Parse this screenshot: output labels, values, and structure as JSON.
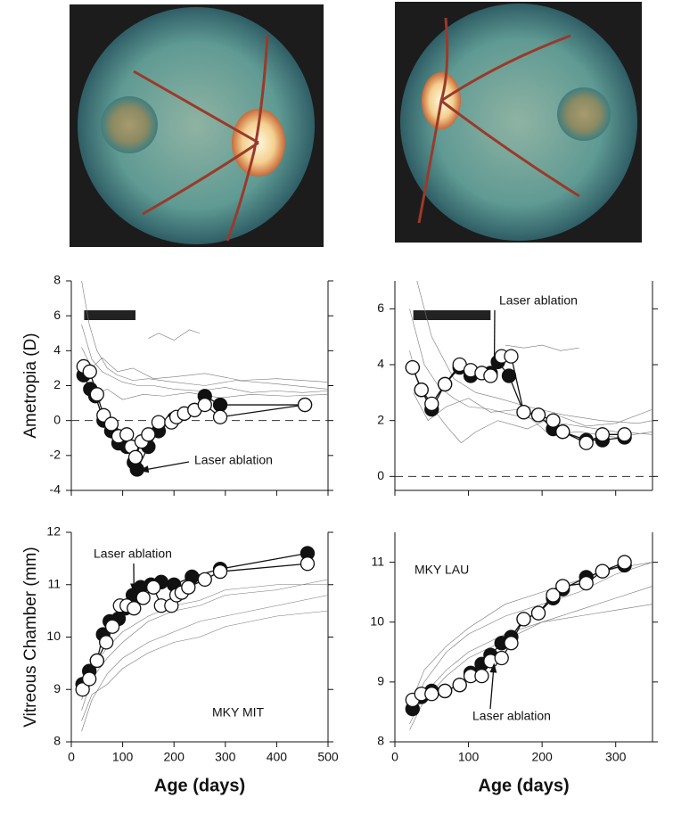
{
  "chart_data": [
    {
      "type": "line",
      "y_label": "Ametropia (D)",
      "xlim": [
        0,
        500
      ],
      "ylim": [
        -4,
        8
      ],
      "xticks": [
        0,
        100,
        200,
        300,
        400,
        500
      ],
      "yticks": [
        -4,
        -2,
        0,
        2,
        4,
        6,
        8
      ],
      "xtick_labels": false,
      "hline": 0,
      "period": [
        25,
        125
      ],
      "annotations": [
        {
          "text": "Laser ablation",
          "x": 128,
          "y": -2.9
        }
      ],
      "series": [
        {
          "color": "#777777",
          "marker": "none",
          "x": [
            20,
            40,
            60,
            80,
            100,
            130,
            160,
            200,
            250,
            300,
            350,
            400,
            450,
            500
          ],
          "values": [
            5.5,
            3.5,
            2.8,
            2.5,
            2.2,
            2.0,
            2.0,
            1.8,
            1.7,
            1.9,
            1.6,
            1.7,
            1.6,
            1.7
          ]
        },
        {
          "color": "#777777",
          "marker": "none",
          "x": [
            20,
            35,
            50,
            70,
            90,
            120,
            150,
            200,
            260,
            320,
            400,
            500
          ],
          "values": [
            8,
            5.5,
            4,
            3,
            2.6,
            2.3,
            2.4,
            2.2,
            2.0,
            2.3,
            2.1,
            1.8
          ]
        },
        {
          "color": "#777777",
          "marker": "none",
          "x": [
            25,
            45,
            70,
            100,
            140,
            180,
            230,
            290,
            350,
            420,
            500
          ],
          "values": [
            2,
            1.5,
            1.8,
            1.2,
            1.5,
            1.4,
            1.6,
            1.3,
            1.5,
            1.4,
            1.5
          ]
        },
        {
          "color": "#777777",
          "marker": "none",
          "x": [
            150,
            170,
            200,
            230,
            250
          ],
          "values": [
            4.7,
            5.0,
            4.6,
            5.2,
            5.0
          ]
        },
        {
          "color": "#777777",
          "marker": "none",
          "x": [
            20,
            40,
            60,
            90,
            120,
            160,
            200,
            260,
            330,
            400,
            500
          ],
          "values": [
            4.2,
            3.0,
            3.6,
            2.8,
            3.0,
            2.4,
            2.5,
            2.7,
            2.3,
            2.4,
            2.2
          ]
        },
        {
          "color": "#111111",
          "marker": "filled",
          "x": [
            24,
            37,
            47,
            63,
            78,
            92,
            108,
            122,
            128,
            150,
            170,
            200,
            240,
            260,
            290,
            455
          ],
          "values": [
            2.6,
            1.8,
            1.4,
            0,
            -0.6,
            -1.3,
            -1.5,
            -2.4,
            -2.8,
            -1.5,
            -0.6,
            0.1,
            0.6,
            1.4,
            0.9,
            0.9
          ]
        },
        {
          "color": "#111111",
          "marker": "open",
          "x": [
            24,
            36,
            50,
            63,
            78,
            92,
            108,
            117,
            125,
            137,
            150,
            170,
            195,
            205,
            220,
            240,
            260,
            290,
            455
          ],
          "values": [
            3.1,
            2.8,
            1.5,
            0.3,
            -0.2,
            -0.9,
            -0.8,
            -1.5,
            -2.1,
            -1.2,
            -0.8,
            -0.1,
            -0.1,
            0.2,
            0.4,
            0.6,
            0.9,
            0.2,
            0.9
          ]
        }
      ]
    },
    {
      "type": "line",
      "xlim": [
        0,
        350
      ],
      "ylim": [
        -0.5,
        7
      ],
      "xticks": [
        0,
        100,
        200,
        300
      ],
      "yticks": [
        0,
        2,
        4,
        6
      ],
      "xtick_labels": false,
      "hline": 0,
      "period": [
        25,
        130
      ],
      "annotations": [
        {
          "text": "Laser ablation",
          "x": 135,
          "y": 3.7
        }
      ],
      "series": [
        {
          "color": "#777777",
          "marker": "none",
          "x": [
            20,
            40,
            60,
            80,
            100,
            130,
            160,
            200,
            250,
            300,
            350
          ],
          "values": [
            6,
            4,
            3.2,
            2.8,
            2.5,
            2.4,
            2.2,
            2.0,
            1.8,
            1.6,
            1.5
          ]
        },
        {
          "color": "#777777",
          "marker": "none",
          "x": [
            20,
            35,
            50,
            70,
            90,
            110,
            140,
            180,
            220,
            260,
            300,
            350
          ],
          "values": [
            4.5,
            3,
            2.5,
            1.8,
            1.2,
            1.6,
            2,
            1.7,
            2.2,
            1.8,
            1.9,
            2.4
          ]
        },
        {
          "color": "#777777",
          "marker": "none",
          "x": [
            25,
            45,
            70,
            100,
            130,
            170,
            210,
            250,
            300,
            350
          ],
          "values": [
            3,
            2,
            2.5,
            2.8,
            2.3,
            2.4,
            1.5,
            1.6,
            1.4,
            1.6
          ]
        },
        {
          "color": "#777777",
          "marker": "none",
          "x": [
            150,
            175,
            200,
            225,
            250
          ],
          "values": [
            4.7,
            4.6,
            4.7,
            4.5,
            4.6
          ]
        },
        {
          "color": "#777777",
          "marker": "none",
          "x": [
            30,
            50,
            80,
            110,
            140,
            180,
            230,
            280,
            330,
            350
          ],
          "values": [
            7,
            5,
            3.5,
            3,
            2.8,
            2.5,
            2.2,
            2.0,
            1.9,
            2.0
          ]
        },
        {
          "color": "#111111",
          "marker": "filled",
          "x": [
            24,
            36,
            50,
            68,
            88,
            103,
            118,
            130,
            140,
            155,
            175,
            195,
            215,
            228,
            260,
            282,
            312
          ],
          "values": [
            3.9,
            3.1,
            2.4,
            3.3,
            3.9,
            3.6,
            3.7,
            3.7,
            4.1,
            3.6,
            2.3,
            2.2,
            1.7,
            1.6,
            1.3,
            1.3,
            1.4
          ]
        },
        {
          "color": "#111111",
          "marker": "open",
          "x": [
            24,
            36,
            50,
            68,
            88,
            103,
            118,
            130,
            145,
            158,
            175,
            195,
            215,
            228,
            260,
            282,
            312
          ],
          "values": [
            3.9,
            3.1,
            2.6,
            3.3,
            4.0,
            3.8,
            3.7,
            3.6,
            4.3,
            4.3,
            2.3,
            2.2,
            2.0,
            1.6,
            1.2,
            1.5,
            1.5
          ]
        }
      ]
    },
    {
      "type": "line",
      "y_label": "Vitreous Chamber (mm)",
      "x_label": "Age (days)",
      "xlim": [
        0,
        500
      ],
      "ylim": [
        8,
        12
      ],
      "xticks": [
        0,
        100,
        200,
        300,
        400,
        500
      ],
      "yticks": [
        8,
        9,
        10,
        11,
        12
      ],
      "xtick_labels": true,
      "annotations": [
        {
          "text": "Laser ablation",
          "x": 122,
          "y": 10.8
        },
        {
          "text": "MKY MIT"
        }
      ],
      "series": [
        {
          "color": "#777777",
          "marker": "none",
          "x": [
            20,
            40,
            70,
            100,
            150,
            200,
            250,
            300,
            400,
            500
          ],
          "values": [
            8.2,
            8.8,
            9.3,
            9.6,
            9.9,
            10.1,
            10.3,
            10.4,
            10.6,
            10.8
          ]
        },
        {
          "color": "#777777",
          "marker": "none",
          "x": [
            20,
            40,
            70,
            100,
            150,
            200,
            250,
            300,
            400,
            500
          ],
          "values": [
            8.6,
            9.2,
            9.6,
            9.9,
            10.3,
            10.5,
            10.6,
            10.8,
            10.9,
            11.1
          ]
        },
        {
          "color": "#777777",
          "marker": "none",
          "x": [
            20,
            40,
            70,
            100,
            150,
            200,
            250,
            300,
            400,
            500
          ],
          "values": [
            8.4,
            8.9,
            9.1,
            9.4,
            9.7,
            9.9,
            10.0,
            10.2,
            10.4,
            10.5
          ]
        },
        {
          "color": "#777777",
          "marker": "none",
          "x": [
            20,
            40,
            70,
            100,
            150,
            200,
            250,
            300,
            400,
            500
          ],
          "values": [
            8.8,
            9.4,
            9.8,
            10.1,
            10.4,
            10.6,
            10.7,
            10.9,
            11.0,
            11.0
          ]
        },
        {
          "color": "#111111",
          "marker": "filled",
          "x": [
            22,
            35,
            50,
            62,
            75,
            92,
            105,
            120,
            135,
            155,
            175,
            200,
            235,
            290,
            460
          ],
          "values": [
            9.1,
            9.35,
            9.55,
            10.05,
            10.3,
            10.35,
            10.55,
            10.8,
            10.95,
            11.0,
            11.05,
            11.0,
            11.15,
            11.3,
            11.6
          ]
        },
        {
          "color": "#111111",
          "marker": "open",
          "x": [
            22,
            35,
            50,
            68,
            80,
            95,
            108,
            122,
            140,
            160,
            175,
            195,
            205,
            215,
            228,
            260,
            290,
            460
          ],
          "values": [
            9.0,
            9.2,
            9.55,
            9.9,
            10.2,
            10.6,
            10.6,
            10.55,
            10.75,
            10.95,
            10.6,
            10.6,
            10.8,
            10.85,
            10.95,
            11.1,
            11.25,
            11.4
          ]
        }
      ]
    },
    {
      "type": "line",
      "x_label": "Age (days)",
      "xlim": [
        0,
        350
      ],
      "ylim": [
        8,
        11.5
      ],
      "xticks": [
        0,
        100,
        200,
        300
      ],
      "yticks": [
        8,
        9,
        10,
        11
      ],
      "xtick_labels": true,
      "annotations": [
        {
          "text": "Laser ablation",
          "x": 135,
          "y": 9.35
        },
        {
          "text": "MKY LAU"
        }
      ],
      "series": [
        {
          "color": "#777777",
          "marker": "none",
          "x": [
            20,
            40,
            70,
            100,
            150,
            200,
            250,
            300,
            350
          ],
          "values": [
            8.2,
            8.7,
            9.1,
            9.4,
            9.7,
            10.0,
            10.2,
            10.4,
            10.6
          ]
        },
        {
          "color": "#777777",
          "marker": "none",
          "x": [
            20,
            40,
            70,
            100,
            150,
            200,
            250,
            300,
            350
          ],
          "values": [
            8.5,
            9.0,
            9.5,
            9.8,
            10.1,
            10.3,
            10.5,
            10.8,
            11.0
          ]
        },
        {
          "color": "#777777",
          "marker": "none",
          "x": [
            20,
            40,
            70,
            100,
            150,
            200,
            250,
            300,
            350
          ],
          "values": [
            8.3,
            8.8,
            9.2,
            9.5,
            9.8,
            10.0,
            10.1,
            10.2,
            10.3
          ]
        },
        {
          "color": "#777777",
          "marker": "none",
          "x": [
            20,
            40,
            70,
            100,
            150,
            200,
            250,
            300,
            350
          ],
          "values": [
            8.6,
            9.2,
            9.6,
            9.9,
            10.3,
            10.5,
            10.7,
            10.9,
            11.0
          ]
        },
        {
          "color": "#111111",
          "marker": "filled",
          "x": [
            24,
            36,
            50,
            68,
            88,
            103,
            118,
            130,
            145,
            158,
            175,
            195,
            215,
            228,
            260,
            282,
            312
          ],
          "values": [
            8.55,
            8.75,
            8.85,
            8.85,
            8.95,
            9.15,
            9.3,
            9.45,
            9.65,
            9.75,
            10.05,
            10.15,
            10.4,
            10.55,
            10.75,
            10.85,
            10.95
          ]
        },
        {
          "color": "#111111",
          "marker": "open",
          "x": [
            24,
            36,
            50,
            68,
            88,
            103,
            118,
            130,
            145,
            158,
            175,
            195,
            215,
            228,
            260,
            282,
            312
          ],
          "values": [
            8.7,
            8.8,
            8.8,
            8.85,
            8.95,
            9.1,
            9.1,
            9.35,
            9.4,
            9.65,
            10.05,
            10.15,
            10.45,
            10.6,
            10.65,
            10.85,
            11.0
          ]
        }
      ]
    }
  ]
}
